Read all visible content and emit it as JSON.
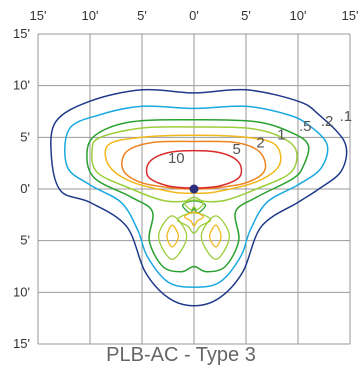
{
  "caption": "PLB-AC - Type 3",
  "chart_data": {
    "type": "isofootcandle-contour",
    "grid": true,
    "unit": "feet",
    "x_ticks": [
      "15'",
      "10'",
      "5'",
      "0'",
      "5'",
      "10'",
      "15'"
    ],
    "y_ticks": [
      "15'",
      "10'",
      "5'",
      "0'",
      "5'",
      "10'",
      "15'"
    ],
    "x_range": [
      -15,
      15
    ],
    "y_range": [
      -15,
      15
    ],
    "fixture_position": [
      0,
      0
    ],
    "contours": [
      {
        "label": ".1",
        "color": "#1f3a8a",
        "points": [
          [
            -13.3,
            6.5
          ],
          [
            -10,
            8.5
          ],
          [
            -5,
            9.6
          ],
          [
            0,
            9.3
          ],
          [
            5,
            9.6
          ],
          [
            10,
            8.5
          ],
          [
            12,
            7.2
          ],
          [
            14.5,
            4.5
          ],
          [
            14.2,
            1.8
          ],
          [
            12,
            0
          ],
          [
            10,
            -1.3
          ],
          [
            6.5,
            -3.6
          ],
          [
            4.7,
            -8
          ],
          [
            2.5,
            -10.5
          ],
          [
            0,
            -11.3
          ],
          [
            -2.5,
            -10.5
          ],
          [
            -4.7,
            -8
          ],
          [
            -6.5,
            -3.6
          ],
          [
            -10,
            -1.3
          ],
          [
            -12.8,
            -0.2
          ],
          [
            -13.7,
            3
          ]
        ]
      },
      {
        "label": ".2",
        "color": "#1aa9e0",
        "points": [
          [
            -12,
            5.8
          ],
          [
            -9,
            7.2
          ],
          [
            -5,
            8
          ],
          [
            0,
            7.8
          ],
          [
            5,
            8
          ],
          [
            9,
            7.2
          ],
          [
            11,
            6.2
          ],
          [
            12.8,
            4.3
          ],
          [
            12.2,
            2
          ],
          [
            10,
            0.4
          ],
          [
            7,
            -1.3
          ],
          [
            5.4,
            -4
          ],
          [
            4.5,
            -6.5
          ],
          [
            2.5,
            -9
          ],
          [
            0,
            -9.5
          ],
          [
            -2.5,
            -9
          ],
          [
            -4.5,
            -6.5
          ],
          [
            -5.4,
            -4
          ],
          [
            -7,
            -1.3
          ],
          [
            -10,
            0.4
          ],
          [
            -12.2,
            2.2
          ]
        ]
      },
      {
        "label": ".5",
        "color": "#2aa12e",
        "points": [
          [
            -9.5,
            5.2
          ],
          [
            -6,
            6.5
          ],
          [
            0,
            6.7
          ],
          [
            6,
            6.5
          ],
          [
            9.5,
            5.4
          ],
          [
            11,
            4.2
          ],
          [
            10.5,
            2.2
          ],
          [
            9.5,
            1
          ],
          [
            6,
            -0.8
          ],
          [
            4,
            -2.2
          ],
          [
            4.3,
            -5
          ],
          [
            3,
            -7.5
          ],
          [
            1.2,
            -8
          ],
          [
            0,
            -7.5
          ],
          [
            -1.2,
            -8
          ],
          [
            -3,
            -7.5
          ],
          [
            -4.3,
            -5
          ],
          [
            -4,
            -2.2
          ],
          [
            -6,
            -0.8
          ],
          [
            -9.5,
            1
          ],
          [
            -10.3,
            3.2
          ]
        ]
      },
      {
        "label": "1",
        "color": "#9ccd3a",
        "points": [
          [
            -9,
            5
          ],
          [
            -5,
            5.9
          ],
          [
            0,
            6
          ],
          [
            5,
            5.9
          ],
          [
            8,
            5.2
          ],
          [
            9.8,
            3.8
          ],
          [
            9.3,
            1.6
          ],
          [
            6,
            0
          ],
          [
            3,
            -1.1
          ],
          [
            1,
            -1.2
          ],
          [
            0,
            -0.8
          ],
          [
            -1,
            -1.2
          ],
          [
            -3,
            -1.1
          ],
          [
            -6,
            0
          ],
          [
            -9.3,
            1.6
          ],
          [
            -9.8,
            3.8
          ]
        ]
      },
      {
        "label": "2",
        "color": "#f2b81e",
        "points": [
          [
            -8.2,
            4.3
          ],
          [
            -5,
            5
          ],
          [
            0,
            5.2
          ],
          [
            5,
            5
          ],
          [
            7.8,
            4.3
          ],
          [
            8.2,
            2.3
          ],
          [
            6,
            0.7
          ],
          [
            2,
            -0.3
          ],
          [
            0,
            -0.4
          ],
          [
            -2,
            -0.3
          ],
          [
            -6,
            0.7
          ],
          [
            -8.2,
            2.3
          ]
        ]
      },
      {
        "label": "5",
        "color": "#ee8420",
        "points": [
          [
            -6.5,
            3.6
          ],
          [
            -4,
            4.5
          ],
          [
            0,
            4.6
          ],
          [
            4,
            4.5
          ],
          [
            6.3,
            3.6
          ],
          [
            6.8,
            1.8
          ],
          [
            5,
            0.6
          ],
          [
            2,
            0.1
          ],
          [
            0,
            0
          ],
          [
            -2,
            0.1
          ],
          [
            -5,
            0.6
          ],
          [
            -6.8,
            1.8
          ]
        ]
      },
      {
        "label": "10",
        "color": "#d92b2b",
        "points": [
          [
            -4.2,
            2.7
          ],
          [
            -2,
            3.6
          ],
          [
            2,
            3.6
          ],
          [
            4.2,
            2.7
          ],
          [
            4.4,
            1.2
          ],
          [
            2.5,
            0.3
          ],
          [
            0,
            0.1
          ],
          [
            -2.5,
            0.3
          ],
          [
            -4.4,
            1.2
          ]
        ]
      }
    ],
    "inner_contours": [
      {
        "color": "#2aa12e",
        "points": [
          [
            -1.1,
            -1.6
          ],
          [
            -0.4,
            -2.3
          ],
          [
            0,
            -1.9
          ],
          [
            0.4,
            -2.3
          ],
          [
            1.1,
            -1.6
          ],
          [
            0.4,
            -1.2
          ],
          [
            -0.4,
            -1.2
          ]
        ]
      },
      {
        "color": "#9ccd3a",
        "points": [
          [
            -0.9,
            -1.4
          ],
          [
            -0.3,
            -2
          ],
          [
            0,
            -1.7
          ],
          [
            0.3,
            -2
          ],
          [
            0.9,
            -1.4
          ],
          [
            0.3,
            -1.1
          ],
          [
            -0.3,
            -1.1
          ]
        ]
      },
      {
        "color": "#9ccd3a",
        "points": [
          [
            -1.6,
            -3
          ],
          [
            -0.6,
            -3.6
          ],
          [
            0,
            -4.3
          ],
          [
            0.6,
            -3.6
          ],
          [
            1.6,
            -3
          ],
          [
            0.6,
            -2.4
          ],
          [
            -0.6,
            -2.4
          ]
        ]
      },
      {
        "color": "#f2b81e",
        "points": [
          [
            -0.9,
            -2.7
          ],
          [
            -0.3,
            -3.1
          ],
          [
            0,
            -3.6
          ],
          [
            0.3,
            -3.1
          ],
          [
            0.9,
            -2.7
          ],
          [
            0.3,
            -2.3
          ],
          [
            -0.3,
            -2.3
          ]
        ]
      },
      {
        "color": "#9ccd3a",
        "points": [
          [
            -3.4,
            -4.6
          ],
          [
            -2.1,
            -2.6
          ],
          [
            -0.7,
            -4.6
          ],
          [
            -2.1,
            -6.8
          ]
        ]
      },
      {
        "color": "#f2b81e",
        "points": [
          [
            -2.6,
            -4.6
          ],
          [
            -2.1,
            -3.5
          ],
          [
            -1.5,
            -4.6
          ],
          [
            -2.1,
            -5.6
          ]
        ]
      },
      {
        "color": "#9ccd3a",
        "points": [
          [
            0.7,
            -4.6
          ],
          [
            2.1,
            -2.6
          ],
          [
            3.4,
            -4.6
          ],
          [
            2.1,
            -6.8
          ]
        ]
      },
      {
        "color": "#f2b81e",
        "points": [
          [
            1.5,
            -4.6
          ],
          [
            2.1,
            -3.5
          ],
          [
            2.6,
            -4.6
          ],
          [
            2.1,
            -5.6
          ]
        ]
      }
    ],
    "label_positions": [
      {
        "text": "10",
        "x": -1.7,
        "y": 2.5
      },
      {
        "text": "5",
        "x": 4.1,
        "y": 3.4
      },
      {
        "text": "2",
        "x": 6.4,
        "y": 4
      },
      {
        "text": "1",
        "x": 8.4,
        "y": 4.8
      },
      {
        "text": ".5",
        "x": 10.7,
        "y": 5.6
      },
      {
        "text": ".2",
        "x": 12.8,
        "y": 6.1
      },
      {
        "text": ".1",
        "x": 14.6,
        "y": 6.6
      }
    ]
  }
}
